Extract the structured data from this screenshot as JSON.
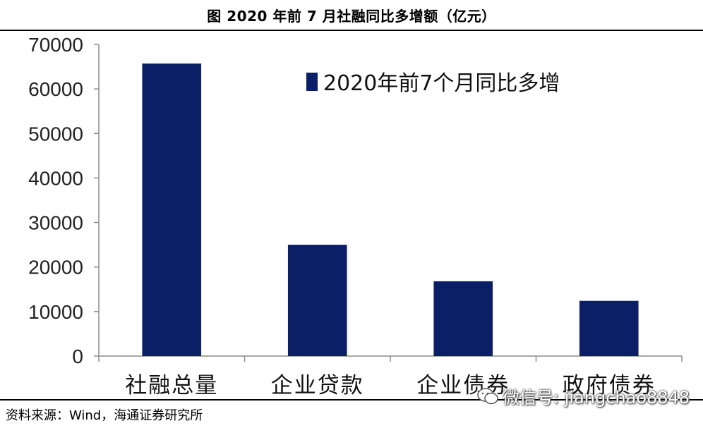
{
  "header": {
    "title": "图  2020 年前 7 月社融同比多增额（亿元）"
  },
  "chart_data": {
    "type": "bar",
    "categories": [
      "社融总量",
      "企业贷款",
      "企业债券",
      "政府债券"
    ],
    "series": [
      {
        "name": "2020年前7个月同比多增",
        "values": [
          65700,
          25000,
          16800,
          12400
        ]
      }
    ],
    "yticks": [
      "0",
      "10000",
      "20000",
      "30000",
      "40000",
      "50000",
      "60000",
      "70000"
    ],
    "ylim": [
      0,
      70000
    ],
    "legend_position": "top-right",
    "grid": false,
    "bar_color": "#0b1f66"
  },
  "footer": {
    "source": "资料来源：Wind，海通证券研究所"
  },
  "watermark": {
    "text": "微信号: jiangchao8848",
    "icon": "wechat-icon"
  }
}
